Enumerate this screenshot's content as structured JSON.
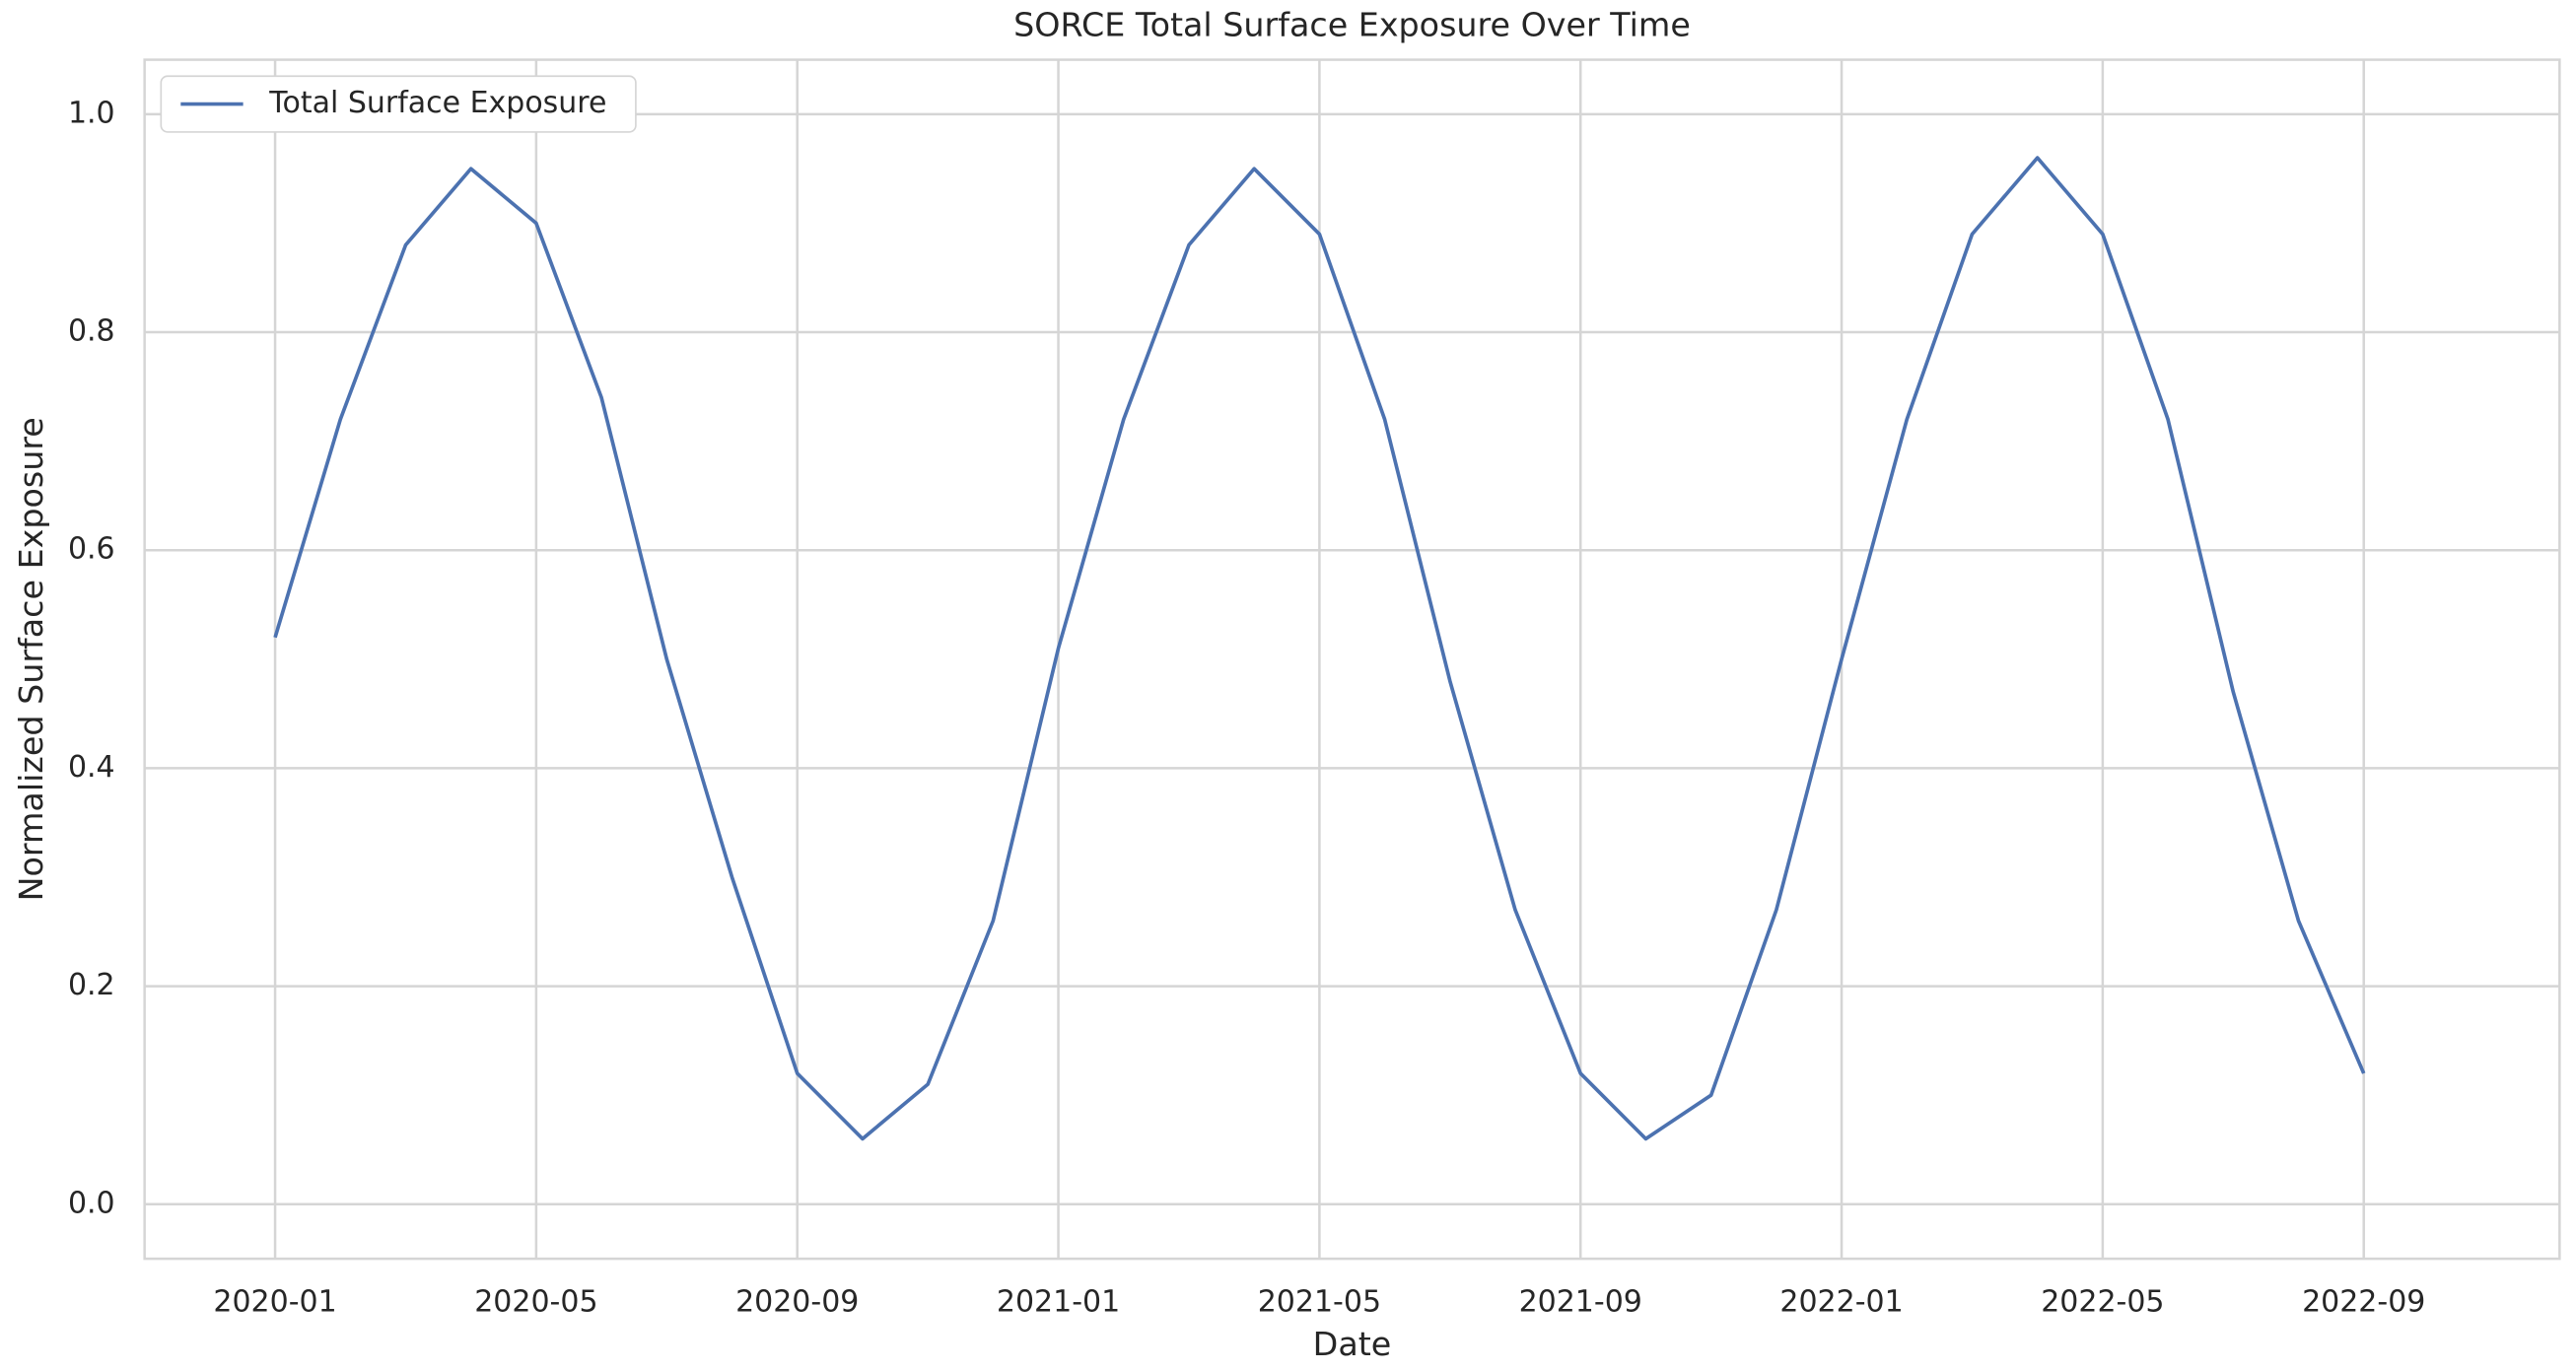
{
  "chart_data": {
    "type": "line",
    "title": "SORCE Total Surface Exposure Over Time",
    "x_label": "Date",
    "y_label": "Normalized Surface Exposure",
    "x": [
      "2020-01",
      "2020-02",
      "2020-03",
      "2020-04",
      "2020-05",
      "2020-06",
      "2020-07",
      "2020-08",
      "2020-09",
      "2020-10",
      "2020-11",
      "2020-12",
      "2021-01",
      "2021-02",
      "2021-03",
      "2021-04",
      "2021-05",
      "2021-06",
      "2021-07",
      "2021-08",
      "2021-09",
      "2021-10",
      "2021-11",
      "2021-12",
      "2022-01",
      "2022-02",
      "2022-03",
      "2022-04",
      "2022-05",
      "2022-06",
      "2022-07",
      "2022-08",
      "2022-09"
    ],
    "series": [
      {
        "name": "Total Surface Exposure",
        "color": "#4c72b0",
        "values": [
          0.52,
          0.72,
          0.88,
          0.95,
          0.9,
          0.74,
          0.5,
          0.3,
          0.12,
          0.06,
          0.11,
          0.26,
          0.51,
          0.72,
          0.88,
          0.95,
          0.89,
          0.72,
          0.48,
          0.27,
          0.12,
          0.06,
          0.1,
          0.27,
          0.5,
          0.72,
          0.89,
          0.96,
          0.89,
          0.72,
          0.47,
          0.26,
          0.12
        ]
      }
    ],
    "xlim": [
      "2019-11",
      "2022-12"
    ],
    "xticks": [
      "2020-01",
      "2020-05",
      "2020-09",
      "2021-01",
      "2021-05",
      "2021-09",
      "2022-01",
      "2022-05",
      "2022-09"
    ],
    "ylim": [
      -0.05,
      1.05
    ],
    "yticks": [
      {
        "value": 0,
        "label": "0.0"
      },
      0.2,
      0.4,
      0.6,
      0.8,
      {
        "value": 1,
        "label": "1.0"
      }
    ],
    "grid": true,
    "legend": "upper-left"
  }
}
